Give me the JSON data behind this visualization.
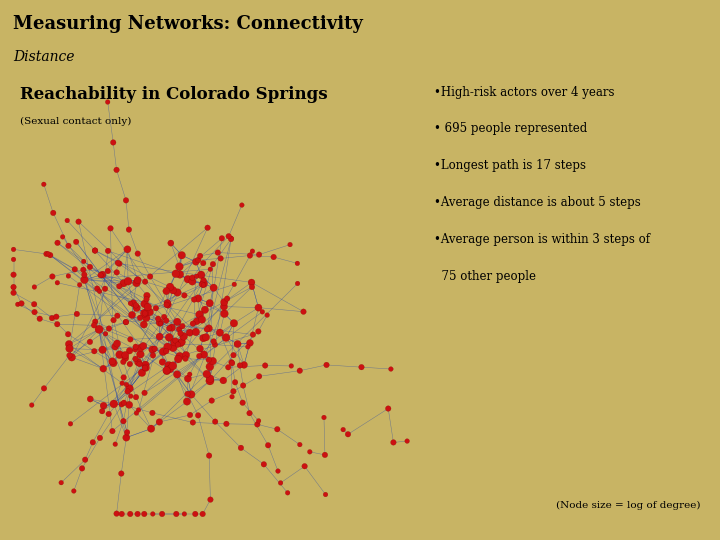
{
  "title_main": "Measuring Networks: Connectivity",
  "title_sub": "Distance",
  "section_title": "Reachability in Colorado Springs",
  "section_sub": "(Sexual contact only)",
  "bullet_lines": [
    "•High-risk actors over 4 years",
    "• 695 people represented",
    "•Longest path is 17 steps",
    "•Average distance is about 5 steps",
    "•Average person is within 3 steps of",
    "  75 other people"
  ],
  "footer": "(Node size = log of degree)",
  "bg_header": "#c8b464",
  "bg_content": "#ffffff",
  "bg_outer": "#c8b464",
  "node_color": "#cc1111",
  "edge_color": "#2244aa",
  "title_color": "#000000",
  "text_color": "#000000",
  "seed": 12345
}
